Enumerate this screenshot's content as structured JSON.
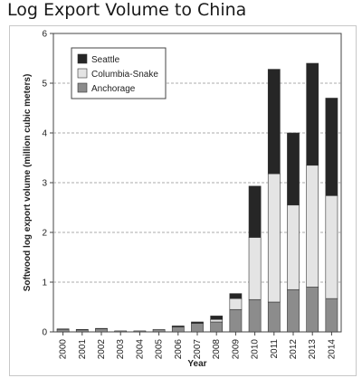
{
  "page": {
    "title": "Log Export Volume to China"
  },
  "colors": {
    "Anchorage": "#8c8c8c",
    "Columbia-Snake": "#e4e4e4",
    "Seattle": "#262626",
    "gridline": "#909090",
    "axis": "#444444"
  },
  "chart_data": {
    "type": "bar",
    "stacked": true,
    "title": "",
    "xlabel": "Year",
    "ylabel": "Softwood log export volume (million cubic meters)",
    "ylim": [
      0,
      6
    ],
    "yticks": [
      0,
      1,
      2,
      3,
      4,
      5,
      6
    ],
    "grid": "horizontal dashed",
    "legend_position": "top-left",
    "legend_order": [
      "Seattle",
      "Columbia-Snake",
      "Anchorage"
    ],
    "categories": [
      "2000",
      "2001",
      "2002",
      "2003",
      "2004",
      "2005",
      "2006",
      "2007",
      "2008",
      "2009",
      "2010",
      "2011",
      "2012",
      "2013",
      "2014"
    ],
    "series": [
      {
        "name": "Anchorage",
        "values": [
          0.05,
          0.04,
          0.06,
          0.02,
          0.02,
          0.05,
          0.1,
          0.17,
          0.2,
          0.45,
          0.65,
          0.6,
          0.85,
          0.9,
          0.67
        ]
      },
      {
        "name": "Columbia-Snake",
        "values": [
          0.0,
          0.0,
          0.0,
          0.0,
          0.0,
          0.0,
          0.01,
          0.01,
          0.05,
          0.22,
          1.25,
          2.58,
          1.7,
          2.45,
          2.07
        ]
      },
      {
        "name": "Seattle",
        "values": [
          0.01,
          0.01,
          0.01,
          0.0,
          0.0,
          0.0,
          0.01,
          0.02,
          0.07,
          0.1,
          1.03,
          2.1,
          1.45,
          2.05,
          1.96
        ]
      }
    ]
  }
}
